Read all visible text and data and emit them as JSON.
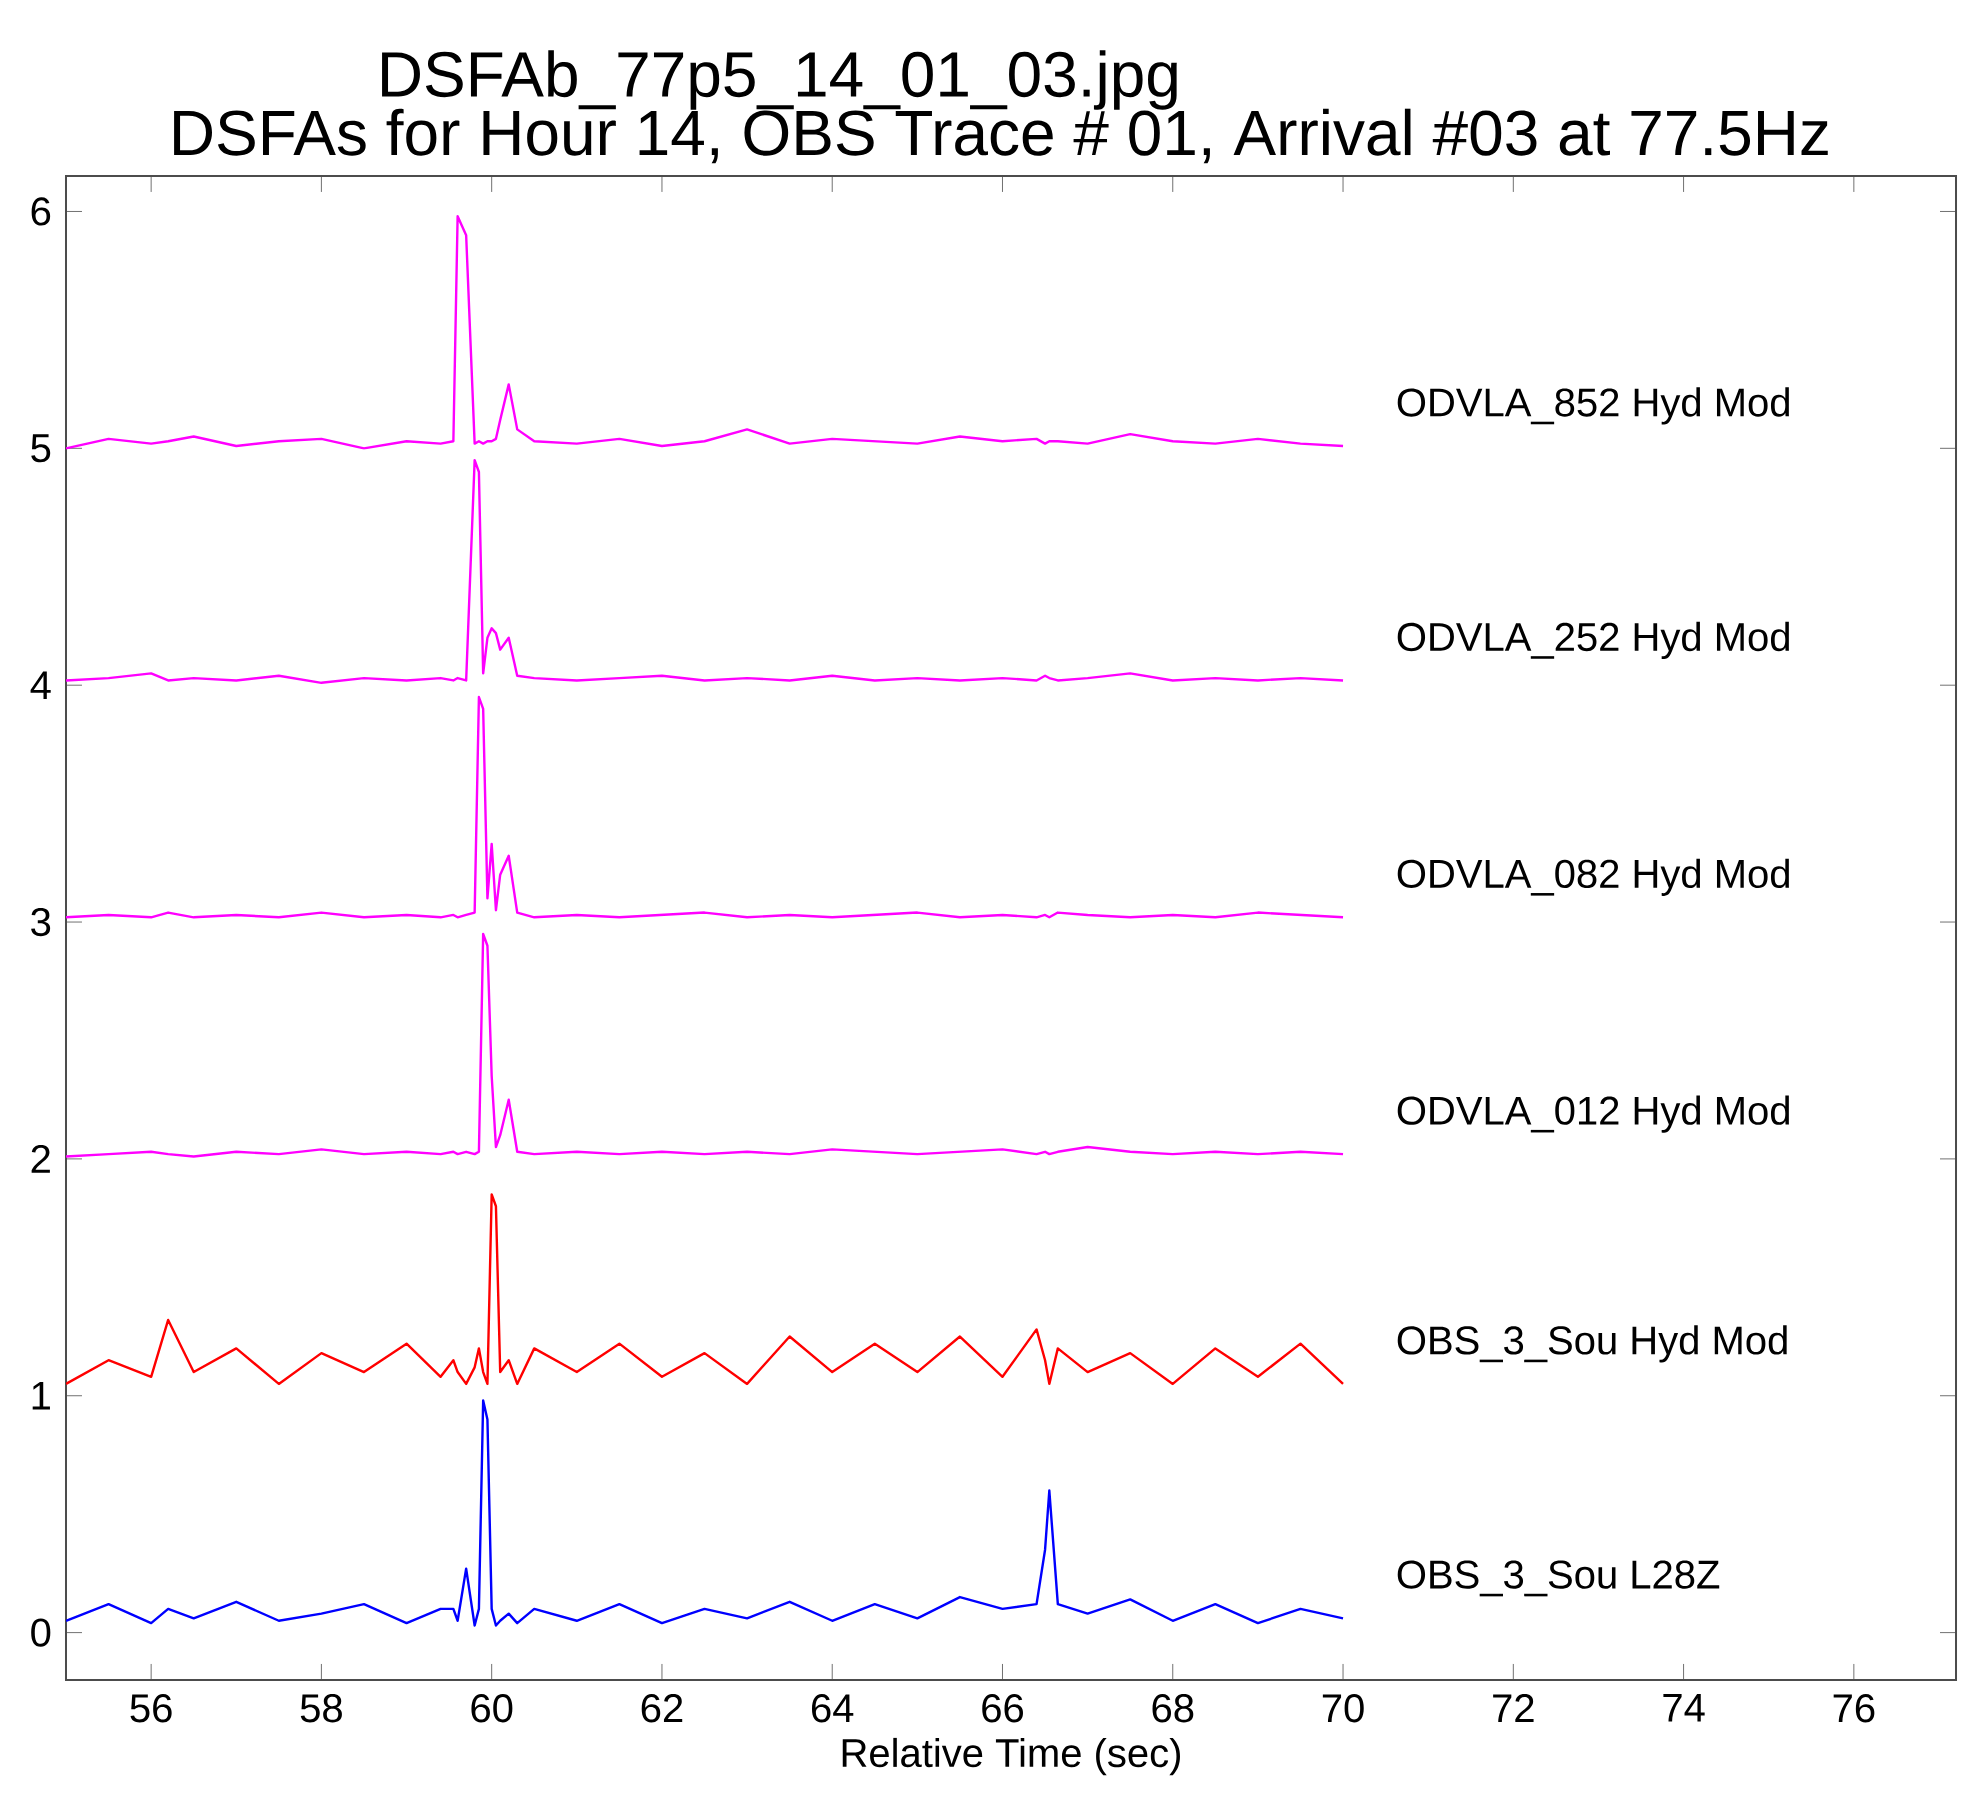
{
  "chart_data": {
    "type": "line",
    "title": "DSFAb_77p5_14_01_03.jpg",
    "subtitle": "DSFAs for Hour 14, OBS Trace # 01, Arrival #03 at 77.5Hz",
    "xlabel": "Relative Time (sec)",
    "xlim": [
      55,
      77.2
    ],
    "ylim": [
      -0.2,
      6.15
    ],
    "xticks": [
      56,
      58,
      60,
      62,
      64,
      66,
      68,
      70,
      72,
      74,
      76
    ],
    "yticks": [
      0,
      1,
      2,
      3,
      4,
      5,
      6
    ],
    "grid": false,
    "legend": false,
    "marker": "none",
    "line_style": "solid",
    "x": [
      55,
      55.5,
      56,
      56.2,
      56.5,
      57,
      57.5,
      58,
      58.5,
      59,
      59.4,
      59.55,
      59.6,
      59.7,
      59.8,
      59.85,
      59.9,
      59.95,
      60.0,
      60.05,
      60.1,
      60.2,
      60.3,
      60.5,
      61,
      61.5,
      62,
      62.5,
      63,
      63.5,
      64,
      64.5,
      65,
      65.5,
      66,
      66.4,
      66.5,
      66.55,
      66.65,
      67,
      67.5,
      68,
      68.5,
      69,
      69.5,
      70
    ],
    "series": [
      {
        "name": "ODVLA_852 Hyd Mod",
        "color": "#ff00ff",
        "values": [
          5.0,
          5.04,
          5.02,
          5.03,
          5.05,
          5.01,
          5.03,
          5.04,
          5.0,
          5.03,
          5.02,
          5.03,
          5.98,
          5.9,
          5.02,
          5.03,
          5.02,
          5.03,
          5.03,
          5.04,
          5.12,
          5.27,
          5.08,
          5.03,
          5.02,
          5.04,
          5.01,
          5.03,
          5.08,
          5.02,
          5.04,
          5.03,
          5.02,
          5.05,
          5.03,
          5.04,
          5.02,
          5.03,
          5.03,
          5.02,
          5.06,
          5.03,
          5.02,
          5.04,
          5.02,
          5.01
        ]
      },
      {
        "name": "ODVLA_252 Hyd Mod",
        "color": "#ff00ff",
        "values": [
          4.02,
          4.03,
          4.05,
          4.02,
          4.03,
          4.02,
          4.04,
          4.01,
          4.03,
          4.02,
          4.03,
          4.02,
          4.03,
          4.02,
          4.95,
          4.9,
          4.05,
          4.2,
          4.24,
          4.22,
          4.15,
          4.2,
          4.04,
          4.03,
          4.02,
          4.03,
          4.04,
          4.02,
          4.03,
          4.02,
          4.04,
          4.02,
          4.03,
          4.02,
          4.03,
          4.02,
          4.04,
          4.03,
          4.02,
          4.03,
          4.05,
          4.02,
          4.03,
          4.02,
          4.03,
          4.02
        ]
      },
      {
        "name": "ODVLA_082 Hyd Mod",
        "color": "#ff00ff",
        "values": [
          3.02,
          3.03,
          3.02,
          3.04,
          3.02,
          3.03,
          3.02,
          3.04,
          3.02,
          3.03,
          3.02,
          3.03,
          3.02,
          3.03,
          3.04,
          3.95,
          3.9,
          3.1,
          3.33,
          3.05,
          3.2,
          3.28,
          3.04,
          3.02,
          3.03,
          3.02,
          3.03,
          3.04,
          3.02,
          3.03,
          3.02,
          3.03,
          3.04,
          3.02,
          3.03,
          3.02,
          3.03,
          3.02,
          3.04,
          3.03,
          3.02,
          3.03,
          3.02,
          3.04,
          3.03,
          3.02
        ]
      },
      {
        "name": "ODVLA_012 Hyd Mod",
        "color": "#ff00ff",
        "values": [
          2.01,
          2.02,
          2.03,
          2.02,
          2.01,
          2.03,
          2.02,
          2.04,
          2.02,
          2.03,
          2.02,
          2.03,
          2.02,
          2.03,
          2.02,
          2.03,
          2.95,
          2.9,
          2.35,
          2.05,
          2.1,
          2.25,
          2.03,
          2.02,
          2.03,
          2.02,
          2.03,
          2.02,
          2.03,
          2.02,
          2.04,
          2.03,
          2.02,
          2.03,
          2.04,
          2.02,
          2.03,
          2.02,
          2.03,
          2.05,
          2.03,
          2.02,
          2.03,
          2.02,
          2.03,
          2.02
        ]
      },
      {
        "name": "OBS_3_Sou Hyd Mod",
        "color": "#ff0000",
        "values": [
          1.05,
          1.15,
          1.08,
          1.32,
          1.1,
          1.2,
          1.05,
          1.18,
          1.1,
          1.22,
          1.08,
          1.15,
          1.1,
          1.05,
          1.12,
          1.2,
          1.1,
          1.05,
          1.85,
          1.8,
          1.1,
          1.15,
          1.05,
          1.2,
          1.1,
          1.22,
          1.08,
          1.18,
          1.05,
          1.25,
          1.1,
          1.22,
          1.1,
          1.25,
          1.08,
          1.28,
          1.15,
          1.05,
          1.2,
          1.1,
          1.18,
          1.05,
          1.2,
          1.08,
          1.22,
          1.05
        ]
      },
      {
        "name": "OBS_3_Sou L28Z",
        "color": "#0000ff",
        "values": [
          0.05,
          0.12,
          0.04,
          0.1,
          0.06,
          0.13,
          0.05,
          0.08,
          0.12,
          0.04,
          0.1,
          0.1,
          0.05,
          0.27,
          0.03,
          0.1,
          0.98,
          0.9,
          0.1,
          0.03,
          0.05,
          0.08,
          0.04,
          0.1,
          0.05,
          0.12,
          0.04,
          0.1,
          0.06,
          0.13,
          0.05,
          0.12,
          0.06,
          0.15,
          0.1,
          0.12,
          0.35,
          0.6,
          0.12,
          0.08,
          0.14,
          0.05,
          0.12,
          0.04,
          0.1,
          0.06
        ]
      }
    ]
  }
}
